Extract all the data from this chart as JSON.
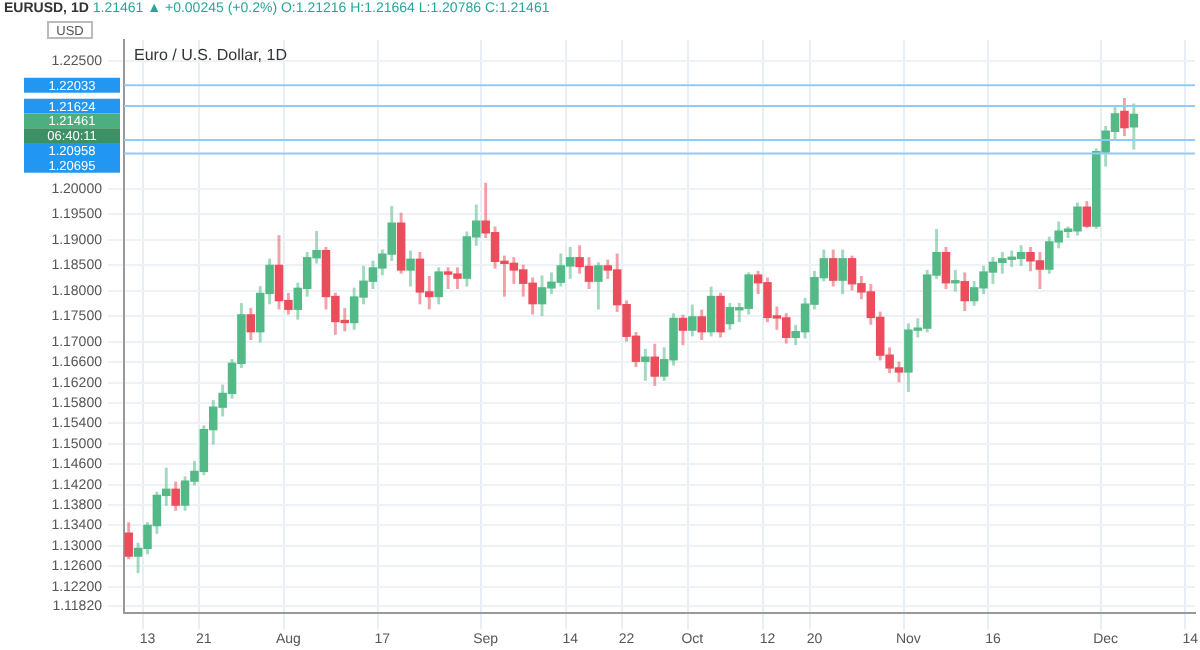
{
  "chart_data": {
    "type": "candlestick",
    "title": "EURUSD, 1D",
    "subtitle": "Euro / U.S. Dollar, 1D",
    "ylabel": "USD",
    "categories": [
      null,
      null,
      "13",
      null,
      null,
      null,
      null,
      null,
      "21",
      null,
      null,
      null,
      null,
      null,
      null,
      null,
      null,
      "Aug",
      null,
      null,
      null,
      null,
      null,
      null,
      null,
      null,
      null,
      "17",
      null,
      null,
      null,
      null,
      null,
      null,
      null,
      null,
      null,
      null,
      "Sep",
      null,
      null,
      null,
      null,
      null,
      null,
      null,
      null,
      "14",
      null,
      null,
      null,
      null,
      null,
      "22",
      null,
      null,
      null,
      null,
      null,
      null,
      "Oct",
      null,
      null,
      null,
      null,
      null,
      null,
      null,
      "12",
      null,
      null,
      null,
      null,
      "20",
      null,
      null,
      null,
      null,
      null,
      null,
      null,
      null,
      null,
      "Nov",
      null,
      null,
      null,
      null,
      null,
      null,
      null,
      null,
      "16",
      null,
      null,
      null,
      null,
      null,
      null,
      null,
      null,
      null,
      null,
      null,
      "Dec",
      null,
      null,
      null,
      null,
      null,
      null,
      null,
      null,
      "14"
    ],
    "ohlc": [
      [
        1.1325,
        1.1345,
        1.1275,
        1.128
      ],
      [
        1.128,
        1.1305,
        1.1248,
        1.1295
      ],
      [
        1.1295,
        1.1345,
        1.1285,
        1.134
      ],
      [
        1.134,
        1.1405,
        1.1325,
        1.1399
      ],
      [
        1.1399,
        1.1452,
        1.138,
        1.1411
      ],
      [
        1.1411,
        1.1425,
        1.137,
        1.138
      ],
      [
        1.138,
        1.1435,
        1.137,
        1.1427
      ],
      [
        1.1427,
        1.1465,
        1.142,
        1.1446
      ],
      [
        1.1446,
        1.1535,
        1.144,
        1.1528
      ],
      [
        1.1528,
        1.1585,
        1.15,
        1.1572
      ],
      [
        1.1572,
        1.1615,
        1.1555,
        1.1599
      ],
      [
        1.1599,
        1.1665,
        1.159,
        1.1658
      ],
      [
        1.1658,
        1.1775,
        1.165,
        1.1753
      ],
      [
        1.1753,
        1.1765,
        1.1705,
        1.172
      ],
      [
        1.172,
        1.1808,
        1.17,
        1.1795
      ],
      [
        1.1795,
        1.1862,
        1.1775,
        1.185
      ],
      [
        1.185,
        1.1908,
        1.1765,
        1.1781
      ],
      [
        1.1781,
        1.1795,
        1.1755,
        1.1764
      ],
      [
        1.1764,
        1.1815,
        1.1745,
        1.1805
      ],
      [
        1.1805,
        1.1875,
        1.179,
        1.1865
      ],
      [
        1.1865,
        1.1916,
        1.1855,
        1.1879
      ],
      [
        1.1879,
        1.1885,
        1.1765,
        1.1789
      ],
      [
        1.1789,
        1.1795,
        1.1715,
        1.174
      ],
      [
        1.174,
        1.1765,
        1.1722,
        1.1738
      ],
      [
        1.1738,
        1.1805,
        1.1725,
        1.1788
      ],
      [
        1.1788,
        1.1848,
        1.1775,
        1.1819
      ],
      [
        1.1819,
        1.1858,
        1.1805,
        1.1845
      ],
      [
        1.1845,
        1.188,
        1.1832,
        1.1872
      ],
      [
        1.1872,
        1.1965,
        1.186,
        1.1933
      ],
      [
        1.1933,
        1.1952,
        1.1835,
        1.1841
      ],
      [
        1.1841,
        1.1878,
        1.181,
        1.1862
      ],
      [
        1.1862,
        1.1875,
        1.1775,
        1.1798
      ],
      [
        1.1798,
        1.1828,
        1.1765,
        1.1789
      ],
      [
        1.1789,
        1.1845,
        1.1775,
        1.1837
      ],
      [
        1.1837,
        1.1845,
        1.1805,
        1.1833
      ],
      [
        1.1833,
        1.1845,
        1.1805,
        1.1825
      ],
      [
        1.1825,
        1.1915,
        1.181,
        1.1906
      ],
      [
        1.1906,
        1.1968,
        1.189,
        1.1937
      ],
      [
        1.1937,
        1.2011,
        1.1905,
        1.1914
      ],
      [
        1.1914,
        1.1925,
        1.1845,
        1.1858
      ],
      [
        1.1858,
        1.1868,
        1.179,
        1.1854
      ],
      [
        1.1854,
        1.1865,
        1.1815,
        1.1841
      ],
      [
        1.1841,
        1.185,
        1.179,
        1.1815
      ],
      [
        1.1815,
        1.1825,
        1.1755,
        1.1775
      ],
      [
        1.1775,
        1.1829,
        1.1752,
        1.1806
      ],
      [
        1.1806,
        1.1835,
        1.1795,
        1.1817
      ],
      [
        1.1817,
        1.1872,
        1.181,
        1.1849
      ],
      [
        1.1849,
        1.1885,
        1.1825,
        1.1865
      ],
      [
        1.1865,
        1.1888,
        1.1835,
        1.1848
      ],
      [
        1.1848,
        1.1865,
        1.1805,
        1.1819
      ],
      [
        1.1819,
        1.1855,
        1.1765,
        1.1849
      ],
      [
        1.1849,
        1.186,
        1.1825,
        1.1841
      ],
      [
        1.1841,
        1.1872,
        1.176,
        1.1773
      ],
      [
        1.1773,
        1.178,
        1.1702,
        1.1711
      ],
      [
        1.1711,
        1.1718,
        1.1652,
        1.1662
      ],
      [
        1.1662,
        1.1685,
        1.1625,
        1.167
      ],
      [
        1.167,
        1.1695,
        1.1615,
        1.1633
      ],
      [
        1.1633,
        1.1688,
        1.1625,
        1.1665
      ],
      [
        1.1665,
        1.1755,
        1.1655,
        1.1746
      ],
      [
        1.1746,
        1.1752,
        1.1695,
        1.1723
      ],
      [
        1.1723,
        1.1772,
        1.1712,
        1.1749
      ],
      [
        1.1749,
        1.1762,
        1.1705,
        1.172
      ],
      [
        1.172,
        1.1807,
        1.1712,
        1.1789
      ],
      [
        1.1789,
        1.1795,
        1.171,
        1.172
      ],
      [
        1.1736,
        1.1775,
        1.1725,
        1.1767
      ],
      [
        1.1763,
        1.1775,
        1.174,
        1.1766
      ],
      [
        1.1766,
        1.1835,
        1.1755,
        1.1831
      ],
      [
        1.1831,
        1.1838,
        1.1795,
        1.1816
      ],
      [
        1.1816,
        1.1825,
        1.174,
        1.1748
      ],
      [
        1.1748,
        1.1768,
        1.1725,
        1.1747
      ],
      [
        1.1747,
        1.1755,
        1.1698,
        1.1709
      ],
      [
        1.1709,
        1.1732,
        1.1695,
        1.172
      ],
      [
        1.172,
        1.1785,
        1.1708,
        1.1774
      ],
      [
        1.1774,
        1.1838,
        1.1765,
        1.1826
      ],
      [
        1.1826,
        1.188,
        1.182,
        1.1863
      ],
      [
        1.1863,
        1.188,
        1.181,
        1.1821
      ],
      [
        1.1821,
        1.188,
        1.1795,
        1.1863
      ],
      [
        1.1863,
        1.1868,
        1.1802,
        1.1814
      ],
      [
        1.1814,
        1.1828,
        1.1785,
        1.1798
      ],
      [
        1.1798,
        1.1812,
        1.1735,
        1.1748
      ],
      [
        1.1748,
        1.1758,
        1.1665,
        1.1674
      ],
      [
        1.1674,
        1.1688,
        1.164,
        1.1649
      ],
      [
        1.1649,
        1.166,
        1.1622,
        1.1641
      ],
      [
        1.1641,
        1.1735,
        1.1603,
        1.1723
      ],
      [
        1.1723,
        1.1745,
        1.171,
        1.1727
      ],
      [
        1.1727,
        1.184,
        1.172,
        1.1831
      ],
      [
        1.1831,
        1.192,
        1.1825,
        1.1875
      ],
      [
        1.1875,
        1.1885,
        1.1805,
        1.1816
      ],
      [
        1.1816,
        1.184,
        1.18,
        1.1818
      ],
      [
        1.1818,
        1.1835,
        1.1762,
        1.1781
      ],
      [
        1.1781,
        1.1818,
        1.1772,
        1.1806
      ],
      [
        1.1806,
        1.1848,
        1.1795,
        1.1837
      ],
      [
        1.1837,
        1.1865,
        1.1815,
        1.1856
      ],
      [
        1.1856,
        1.1875,
        1.1835,
        1.1863
      ],
      [
        1.1862,
        1.1878,
        1.1848,
        1.1864
      ],
      [
        1.1864,
        1.1888,
        1.185,
        1.1875
      ],
      [
        1.1875,
        1.1885,
        1.184,
        1.1859
      ],
      [
        1.1859,
        1.1875,
        1.1805,
        1.1843
      ],
      [
        1.1843,
        1.1905,
        1.1835,
        1.1896
      ],
      [
        1.1896,
        1.1935,
        1.1885,
        1.1917
      ],
      [
        1.1917,
        1.1925,
        1.1905,
        1.1918
      ],
      [
        1.1918,
        1.1972,
        1.191,
        1.1964
      ],
      [
        1.1964,
        1.1975,
        1.1925,
        1.1927
      ],
      [
        1.1927,
        1.2078,
        1.1923,
        1.2073
      ],
      [
        1.2072,
        1.2122,
        1.2045,
        1.2113
      ],
      [
        1.2113,
        1.2162,
        1.2095,
        1.2147
      ],
      [
        1.2152,
        1.2177,
        1.2105,
        1.212
      ],
      [
        1.21216,
        1.21664,
        1.20786,
        1.21461
      ],
      null,
      null,
      null,
      null,
      null,
      null
    ],
    "ylim": [
      1.1168,
      1.2292
    ],
    "yticks": [
      {
        "value": 1.225,
        "label": "1.22500"
      },
      {
        "value": 1.2,
        "label": "1.20000"
      },
      {
        "value": 1.195,
        "label": "1.19500"
      },
      {
        "value": 1.19,
        "label": "1.19000"
      },
      {
        "value": 1.185,
        "label": "1.18500"
      },
      {
        "value": 1.18,
        "label": "1.18000"
      },
      {
        "value": 1.175,
        "label": "1.17500"
      },
      {
        "value": 1.17,
        "label": "1.17000"
      },
      {
        "value": 1.166,
        "label": "1.16600"
      },
      {
        "value": 1.162,
        "label": "1.16200"
      },
      {
        "value": 1.158,
        "label": "1.15800"
      },
      {
        "value": 1.154,
        "label": "1.15400"
      },
      {
        "value": 1.15,
        "label": "1.15000"
      },
      {
        "value": 1.146,
        "label": "1.14600"
      },
      {
        "value": 1.142,
        "label": "1.14200"
      },
      {
        "value": 1.138,
        "label": "1.13800"
      },
      {
        "value": 1.134,
        "label": "1.13400"
      },
      {
        "value": 1.13,
        "label": "1.13000"
      },
      {
        "value": 1.126,
        "label": "1.12600"
      },
      {
        "value": 1.122,
        "label": "1.12200"
      },
      {
        "value": 1.1182,
        "label": "1.11820"
      }
    ],
    "ref_lines": [
      {
        "axis": "y",
        "value": 1.22033,
        "label": "1.22033",
        "color": "#90caf9"
      },
      {
        "axis": "y",
        "value": 1.21624,
        "label": "1.21624",
        "color": "#90caf9"
      },
      {
        "axis": "y",
        "value": 1.20958,
        "label": "1.20958",
        "color": "#90caf9"
      },
      {
        "axis": "y",
        "value": 1.20695,
        "label": "1.20695",
        "color": "#90caf9"
      }
    ],
    "annotations": [
      "1.21461 ▲ +0.00245 (+0.2%) O:1.21216 H:1.21664 L:1.20786 C:1.21461",
      "1.21461",
      "06:40:11"
    ],
    "grid": true,
    "legend": false
  }
}
